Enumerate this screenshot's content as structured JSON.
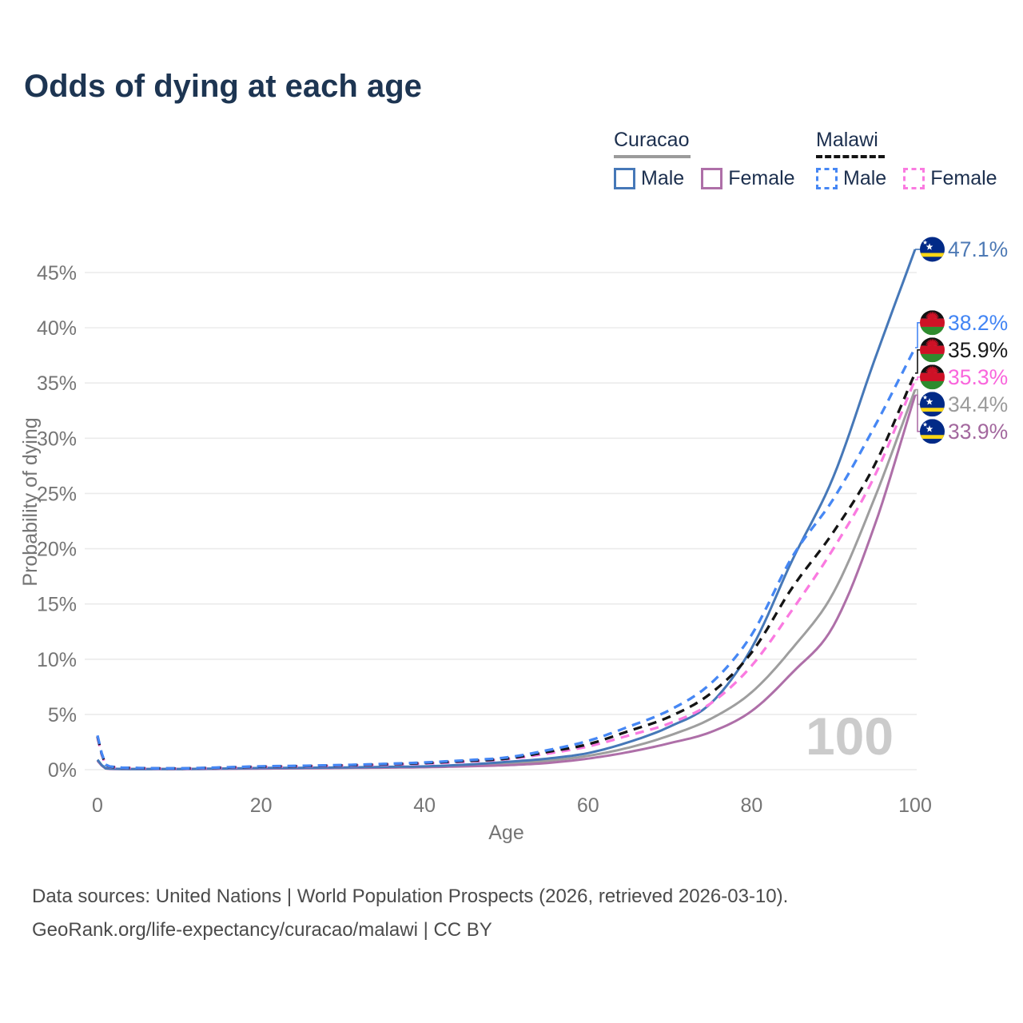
{
  "title": "Odds of dying at each age",
  "legend": {
    "groups": [
      {
        "name": "Curacao",
        "line_style": "solid",
        "underline_color": "#9b9b9b",
        "items": [
          {
            "label": "Male",
            "color": "#4678b8",
            "dashed": false
          },
          {
            "label": "Female",
            "color": "#ae6fa8",
            "dashed": false
          }
        ]
      },
      {
        "name": "Malawi",
        "line_style": "dashed",
        "underline_color": "#141414",
        "items": [
          {
            "label": "Male",
            "color": "#4687f4",
            "dashed": true
          },
          {
            "label": "Female",
            "color": "#fa7ae0",
            "dashed": true
          }
        ]
      }
    ]
  },
  "chart_data": {
    "type": "line",
    "title": "Odds of dying at each age",
    "xlabel": "Age",
    "ylabel": "Probability of dying",
    "xlim": [
      0,
      100
    ],
    "ylim_pct": [
      0,
      47.5
    ],
    "x_ticks": [
      0,
      20,
      40,
      60,
      80,
      100
    ],
    "y_ticks_pct": [
      0,
      5,
      10,
      15,
      20,
      25,
      30,
      35,
      40,
      45
    ],
    "grid": "horizontal",
    "watermark": "100",
    "legend_position": "top-right",
    "x": [
      0,
      1,
      2,
      5,
      10,
      15,
      20,
      25,
      30,
      35,
      40,
      45,
      50,
      55,
      60,
      65,
      70,
      75,
      80,
      85,
      90,
      95,
      100
    ],
    "series": [
      {
        "id": "curacao-total",
        "name": "Curacao",
        "country": "curacao",
        "color": "#9e9e9e",
        "dashed": false,
        "end_label": {
          "text": "34.4%",
          "color": "#9b9b9b"
        },
        "values": [
          0.85,
          0.11,
          0.07,
          0.05,
          0.06,
          0.08,
          0.12,
          0.14,
          0.17,
          0.21,
          0.26,
          0.37,
          0.55,
          0.8,
          1.25,
          2.0,
          3.1,
          4.6,
          7.0,
          11.0,
          16.0,
          24.5,
          34.4
        ]
      },
      {
        "id": "curacao-female",
        "name": "Curacao Female",
        "country": "curacao",
        "color": "#ae6fa8",
        "dashed": false,
        "end_label": {
          "text": "33.9%",
          "color": "#a3689e"
        },
        "values": [
          0.8,
          0.1,
          0.06,
          0.05,
          0.05,
          0.07,
          0.1,
          0.12,
          0.15,
          0.18,
          0.22,
          0.3,
          0.4,
          0.6,
          1.0,
          1.6,
          2.4,
          3.4,
          5.3,
          8.8,
          13.0,
          22.0,
          33.9
        ]
      },
      {
        "id": "curacao-male",
        "name": "Curacao Male",
        "country": "curacao",
        "color": "#4678b8",
        "dashed": false,
        "end_label": {
          "text": "47.1%",
          "color": "#4e7ab5"
        },
        "values": [
          0.9,
          0.12,
          0.08,
          0.06,
          0.06,
          0.1,
          0.15,
          0.17,
          0.2,
          0.25,
          0.3,
          0.45,
          0.7,
          1.0,
          1.5,
          2.5,
          3.9,
          6.0,
          11.0,
          19.0,
          26.5,
          37.0,
          47.1
        ]
      },
      {
        "id": "malawi-female",
        "name": "Malawi Female",
        "country": "malawi",
        "color": "#fa7ae0",
        "dashed": true,
        "end_label": {
          "text": "35.3%",
          "color": "#f966dc"
        },
        "values": [
          2.9,
          0.4,
          0.22,
          0.13,
          0.1,
          0.16,
          0.25,
          0.3,
          0.36,
          0.44,
          0.55,
          0.72,
          0.95,
          1.45,
          2.1,
          3.1,
          4.2,
          6.0,
          9.4,
          14.5,
          20.0,
          26.5,
          35.3
        ]
      },
      {
        "id": "malawi-total",
        "name": "Malawi",
        "country": "malawi",
        "color": "#141414",
        "dashed": true,
        "end_label": {
          "text": "35.9%",
          "color": "#1a1a1a"
        },
        "values": [
          3.0,
          0.42,
          0.23,
          0.14,
          0.11,
          0.18,
          0.27,
          0.32,
          0.39,
          0.48,
          0.6,
          0.78,
          1.0,
          1.6,
          2.3,
          3.5,
          4.8,
          6.9,
          10.6,
          16.5,
          21.5,
          27.5,
          35.9
        ]
      },
      {
        "id": "malawi-male",
        "name": "Malawi Male",
        "country": "malawi",
        "color": "#4687f4",
        "dashed": true,
        "end_label": {
          "text": "38.2%",
          "color": "#4285f4"
        },
        "values": [
          3.1,
          0.45,
          0.25,
          0.15,
          0.12,
          0.2,
          0.3,
          0.35,
          0.42,
          0.52,
          0.65,
          0.85,
          1.1,
          1.75,
          2.6,
          3.9,
          5.4,
          7.8,
          12.2,
          19.3,
          24.5,
          31.0,
          38.2
        ]
      }
    ],
    "flag_colors": {
      "curacao": {
        "field": "#012a87",
        "stripe": "#f9d616",
        "star": "#ffffff"
      },
      "malawi": {
        "black": "#111111",
        "red": "#ce1126",
        "green": "#2e8b2e"
      }
    }
  },
  "footer": {
    "line1": "Data sources: United Nations | World Population Prospects (2026, retrieved 2026-03-10).",
    "line2": "GeoRank.org/life-expectancy/curacao/malawi | CC BY"
  },
  "style_colors": {
    "title": "#1d3552",
    "legend_text": "#1c2f4e",
    "axis_text": "#757575",
    "gridline": "#ebebeb",
    "watermark": "#cbcbcb",
    "footer_text": "#4b4b4b"
  }
}
